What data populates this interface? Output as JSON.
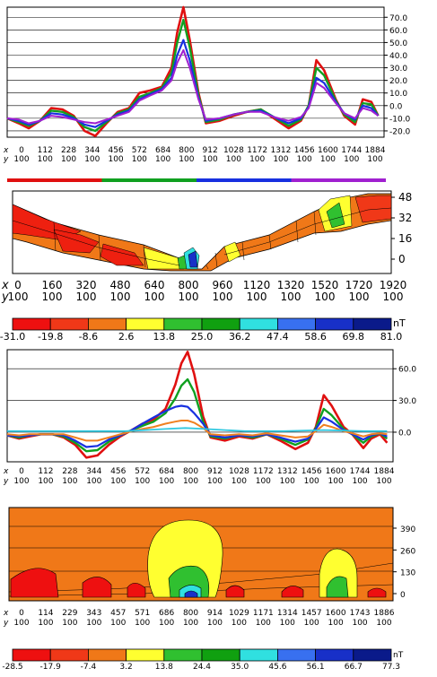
{
  "chart_data": [
    {
      "type": "line",
      "ytick_labels": [
        "70.0",
        "60.0",
        "50.0",
        "40.0",
        "30.0",
        "20.0",
        "10.0",
        "0.0",
        "-10.0",
        "-20.0"
      ],
      "ytick_values": [
        70,
        60,
        50,
        40,
        30,
        20,
        10,
        0,
        -10,
        -20
      ],
      "ylim": [
        -25,
        78
      ],
      "xlim": [
        0,
        1950
      ],
      "x_row_label": "x",
      "y_row_label": "y",
      "x_ticks": [
        "0",
        "112",
        "228",
        "344",
        "456",
        "572",
        "684",
        "800",
        "912",
        "1028",
        "1172",
        "1312",
        "1456",
        "1600",
        "1744",
        "1884"
      ],
      "y_ticks": [
        "100",
        "100",
        "100",
        "100",
        "100",
        "100",
        "100",
        "100",
        "100",
        "100",
        "100",
        "100",
        "100",
        "100",
        "100",
        "100"
      ],
      "grid": true,
      "series": [
        {
          "color": "#e01010",
          "x": [
            0,
            60,
            112,
            170,
            228,
            286,
            344,
            400,
            456,
            514,
            572,
            630,
            684,
            740,
            800,
            850,
            880,
            912,
            945,
            990,
            1028,
            1100,
            1172,
            1240,
            1312,
            1380,
            1456,
            1520,
            1560,
            1600,
            1640,
            1700,
            1744,
            1800,
            1840,
            1884,
            1920
          ],
          "values": [
            -10,
            -14,
            -18,
            -12,
            -2,
            -3,
            -8,
            -20,
            -24,
            -14,
            -5,
            -2,
            10,
            12,
            15,
            30,
            58,
            78,
            52,
            10,
            -14,
            -12,
            -8,
            -5,
            -3,
            -10,
            -18,
            -12,
            0,
            36,
            28,
            5,
            -8,
            -15,
            5,
            3,
            -8
          ]
        },
        {
          "color": "#10a020",
          "x": [
            0,
            60,
            112,
            170,
            228,
            286,
            344,
            400,
            456,
            514,
            572,
            630,
            684,
            740,
            800,
            850,
            880,
            912,
            945,
            990,
            1028,
            1100,
            1172,
            1240,
            1312,
            1380,
            1456,
            1520,
            1560,
            1600,
            1640,
            1700,
            1744,
            1800,
            1840,
            1884,
            1920
          ],
          "values": [
            -10,
            -13,
            -16,
            -12,
            -4,
            -5,
            -9,
            -17,
            -20,
            -13,
            -6,
            -3,
            7,
            10,
            14,
            26,
            50,
            68,
            46,
            8,
            -13,
            -11,
            -7,
            -5,
            -3,
            -9,
            -16,
            -11,
            0,
            30,
            24,
            4,
            -7,
            -13,
            2,
            1,
            -8
          ]
        },
        {
          "color": "#1830e0",
          "x": [
            0,
            60,
            112,
            170,
            228,
            286,
            344,
            400,
            456,
            514,
            572,
            630,
            684,
            740,
            800,
            850,
            880,
            912,
            945,
            990,
            1028,
            1100,
            1172,
            1240,
            1312,
            1380,
            1456,
            1520,
            1560,
            1600,
            1640,
            1700,
            1744,
            1800,
            1840,
            1884,
            1920
          ],
          "values": [
            -10,
            -12,
            -15,
            -12,
            -6,
            -7,
            -10,
            -15,
            -17,
            -12,
            -7,
            -4,
            5,
            9,
            13,
            22,
            40,
            52,
            36,
            6,
            -12,
            -10,
            -7,
            -5,
            -4,
            -9,
            -14,
            -10,
            -1,
            22,
            18,
            3,
            -6,
            -11,
            0,
            -2,
            -8
          ]
        },
        {
          "color": "#a020d0",
          "x": [
            0,
            60,
            112,
            170,
            228,
            286,
            344,
            400,
            456,
            514,
            572,
            630,
            684,
            740,
            800,
            850,
            880,
            912,
            945,
            990,
            1028,
            1100,
            1172,
            1240,
            1312,
            1380,
            1456,
            1520,
            1560,
            1600,
            1640,
            1700,
            1744,
            1800,
            1840,
            1884,
            1920
          ],
          "values": [
            -10,
            -11,
            -14,
            -12,
            -8,
            -9,
            -11,
            -13,
            -14,
            -11,
            -8,
            -5,
            4,
            8,
            12,
            20,
            34,
            44,
            30,
            5,
            -11,
            -10,
            -7,
            -5,
            -5,
            -9,
            -12,
            -9,
            -2,
            18,
            14,
            2,
            -6,
            -10,
            -2,
            -4,
            -8
          ]
        }
      ],
      "legend_colors": [
        "#e01010",
        "#10a020",
        "#1830e0",
        "#a020d0"
      ]
    },
    {
      "type": "heatmap",
      "ytick_labels": [
        "48",
        "32",
        "16",
        "0"
      ],
      "ytick_values": [
        48,
        32,
        16,
        0
      ],
      "x_row_label": "x",
      "y_row_label": "y",
      "x_ticks": [
        "0",
        "160",
        "320",
        "480",
        "640",
        "800",
        "960",
        "1120",
        "1320",
        "1520",
        "1720",
        "1920"
      ],
      "y_ticks": [
        "100",
        "100",
        "100",
        "100",
        "100",
        "100",
        "100",
        "100",
        "100",
        "100",
        "100",
        "100"
      ]
    },
    {
      "type": "table",
      "unit": "nT",
      "labels": [
        "-31.0",
        "-19.8",
        "-8.6",
        "2.6",
        "13.8",
        "25.0",
        "36.2",
        "47.4",
        "58.6",
        "69.8",
        "81.0"
      ],
      "colors": [
        "#ee1010",
        "#f03818",
        "#f07818",
        "#ffff30",
        "#30c030",
        "#10a010",
        "#30e0e0",
        "#3870f0",
        "#1830c8",
        "#0a1a8a"
      ]
    },
    {
      "type": "line",
      "ytick_labels": [
        "60.0",
        "30.0",
        "0.0"
      ],
      "ytick_values": [
        60,
        30,
        0
      ],
      "ylim": [
        -28,
        78
      ],
      "xlim": [
        0,
        1950
      ],
      "x_row_label": "x",
      "y_row_label": "y",
      "x_ticks": [
        "0",
        "112",
        "228",
        "344",
        "456",
        "572",
        "684",
        "800",
        "912",
        "1028",
        "1172",
        "1312",
        "1456",
        "1600",
        "1744",
        "1884"
      ],
      "y_ticks": [
        "100",
        "100",
        "100",
        "100",
        "100",
        "100",
        "100",
        "100",
        "100",
        "100",
        "100",
        "100",
        "100",
        "100",
        "100",
        "100"
      ],
      "grid": true,
      "series": [
        {
          "color": "#e01010",
          "x": [
            0,
            60,
            112,
            170,
            228,
            286,
            344,
            400,
            456,
            514,
            572,
            630,
            684,
            740,
            800,
            850,
            880,
            912,
            945,
            990,
            1028,
            1100,
            1172,
            1240,
            1312,
            1380,
            1456,
            1520,
            1560,
            1600,
            1640,
            1700,
            1744,
            1800,
            1840,
            1884,
            1920
          ],
          "values": [
            -3,
            -6,
            -4,
            -2,
            -2,
            -5,
            -12,
            -24,
            -22,
            -12,
            -4,
            2,
            8,
            12,
            22,
            45,
            65,
            76,
            55,
            15,
            -5,
            -8,
            -4,
            -6,
            -2,
            -8,
            -16,
            -10,
            5,
            35,
            25,
            5,
            -2,
            -15,
            -6,
            -2,
            -10
          ]
        },
        {
          "color": "#10a020",
          "x": [
            0,
            60,
            112,
            170,
            228,
            286,
            344,
            400,
            456,
            514,
            572,
            630,
            684,
            740,
            800,
            850,
            880,
            912,
            945,
            990,
            1028,
            1100,
            1172,
            1240,
            1312,
            1380,
            1456,
            1520,
            1560,
            1600,
            1640,
            1700,
            1744,
            1800,
            1840,
            1884,
            1920
          ],
          "values": [
            -3,
            -5,
            -3,
            -2,
            -2,
            -4,
            -10,
            -18,
            -17,
            -9,
            -3,
            2,
            6,
            10,
            18,
            32,
            44,
            50,
            38,
            10,
            -4,
            -6,
            -3,
            -5,
            -2,
            -6,
            -12,
            -7,
            4,
            22,
            16,
            3,
            -2,
            -10,
            -4,
            -1,
            -6
          ]
        },
        {
          "color": "#1830e0",
          "x": [
            0,
            60,
            112,
            170,
            228,
            286,
            344,
            400,
            456,
            514,
            572,
            630,
            684,
            740,
            800,
            850,
            880,
            912,
            945,
            990,
            1028,
            1100,
            1172,
            1240,
            1312,
            1380,
            1456,
            1520,
            1560,
            1600,
            1640,
            1700,
            1744,
            1800,
            1840,
            1884,
            1920
          ],
          "values": [
            -3,
            -4,
            -3,
            -2,
            -2,
            -3,
            -8,
            -14,
            -13,
            -7,
            -3,
            2,
            8,
            14,
            20,
            24,
            25,
            24,
            18,
            8,
            -3,
            -5,
            -3,
            -4,
            -2,
            -5,
            -9,
            -6,
            3,
            14,
            10,
            2,
            -2,
            -7,
            -3,
            -1,
            -4
          ]
        },
        {
          "color": "#f08020",
          "x": [
            0,
            60,
            112,
            170,
            228,
            286,
            344,
            400,
            456,
            514,
            572,
            630,
            684,
            740,
            800,
            850,
            880,
            912,
            945,
            990,
            1028,
            1100,
            1172,
            1240,
            1312,
            1380,
            1456,
            1520,
            1560,
            1600,
            1640,
            1700,
            1744,
            1800,
            1840,
            1884,
            1920
          ],
          "values": [
            -2,
            -3,
            -2,
            -2,
            -2,
            -2,
            -5,
            -8,
            -8,
            -5,
            -2,
            1,
            3,
            5,
            8,
            10,
            11,
            11,
            9,
            4,
            -2,
            -3,
            -2,
            -3,
            -1,
            -3,
            -5,
            -4,
            1,
            7,
            5,
            1,
            -1,
            -4,
            -2,
            -1,
            -2
          ]
        },
        {
          "color": "#30c8e0",
          "x": [
            0,
            200,
            400,
            600,
            800,
            900,
            1000,
            1200,
            1400,
            1600,
            1800,
            1920
          ],
          "values": [
            1,
            1,
            1,
            1,
            3,
            4,
            3,
            1,
            1,
            2,
            1,
            1
          ]
        }
      ]
    },
    {
      "type": "heatmap",
      "ytick_labels": [
        "390",
        "260",
        "130",
        "0"
      ],
      "ytick_values": [
        390,
        260,
        130,
        0
      ],
      "x_row_label": "x",
      "y_row_label": "y",
      "x_ticks": [
        "0",
        "114",
        "229",
        "343",
        "457",
        "571",
        "686",
        "800",
        "914",
        "1029",
        "1171",
        "1314",
        "1457",
        "1600",
        "1743",
        "1886"
      ],
      "y_ticks": [
        "100",
        "100",
        "100",
        "100",
        "100",
        "100",
        "100",
        "100",
        "100",
        "100",
        "100",
        "100",
        "100",
        "100",
        "100",
        "100"
      ]
    },
    {
      "type": "table",
      "unit": "nT",
      "labels": [
        "-28.5",
        "-17.9",
        "-7.4",
        "3.2",
        "13.8",
        "24.4",
        "35.0",
        "45.6",
        "56.1",
        "66.7",
        "77.3"
      ],
      "colors": [
        "#ee1010",
        "#f03818",
        "#f07818",
        "#ffff30",
        "#30c030",
        "#10a010",
        "#30e0e0",
        "#3870f0",
        "#1830c8",
        "#0a1a8a"
      ]
    }
  ]
}
